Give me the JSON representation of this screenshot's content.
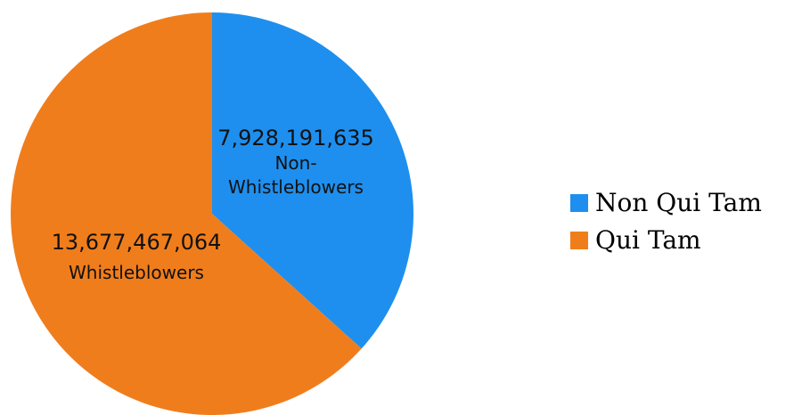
{
  "chart_data": {
    "type": "pie",
    "title": "",
    "slices": [
      {
        "name": "Non Qui Tam",
        "value": 7928191635,
        "value_label": "7,928,191,635",
        "label_lines": [
          "Non-",
          "Whistleblowers"
        ],
        "color": "#1e8fee"
      },
      {
        "name": "Qui Tam",
        "value": 13677467064,
        "value_label": "13,677,467,064",
        "label_lines": [
          "Whistleblowers"
        ],
        "color": "#f07d1c"
      }
    ],
    "start_angle_deg": 0,
    "direction": "clockwise",
    "legend": {
      "position": "right",
      "items": [
        "Non Qui Tam",
        "Qui Tam"
      ]
    }
  }
}
